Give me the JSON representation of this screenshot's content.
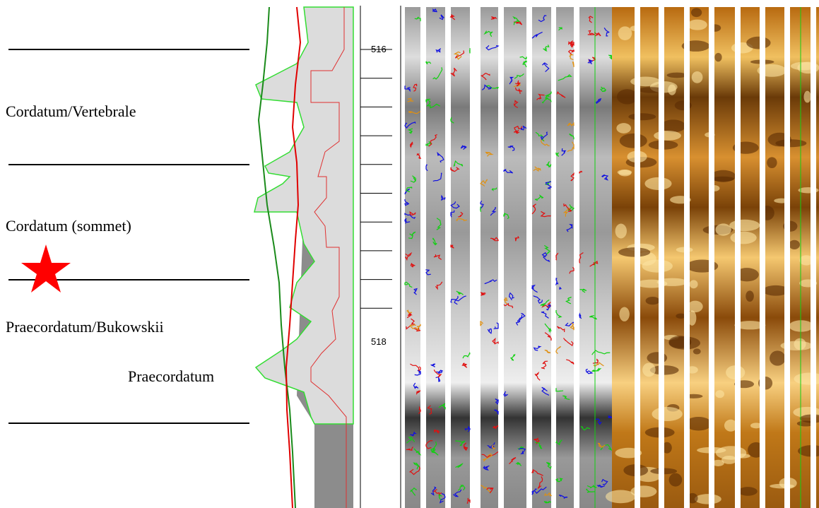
{
  "zones": [
    {
      "label": "Cordatum/Vertebrale"
    },
    {
      "label": "Cordatum (sommet)"
    },
    {
      "label": "Praecordatum/Bukowskii"
    },
    {
      "label": "Praecordatum"
    }
  ],
  "depth_labels": [
    "516",
    "518"
  ]
}
